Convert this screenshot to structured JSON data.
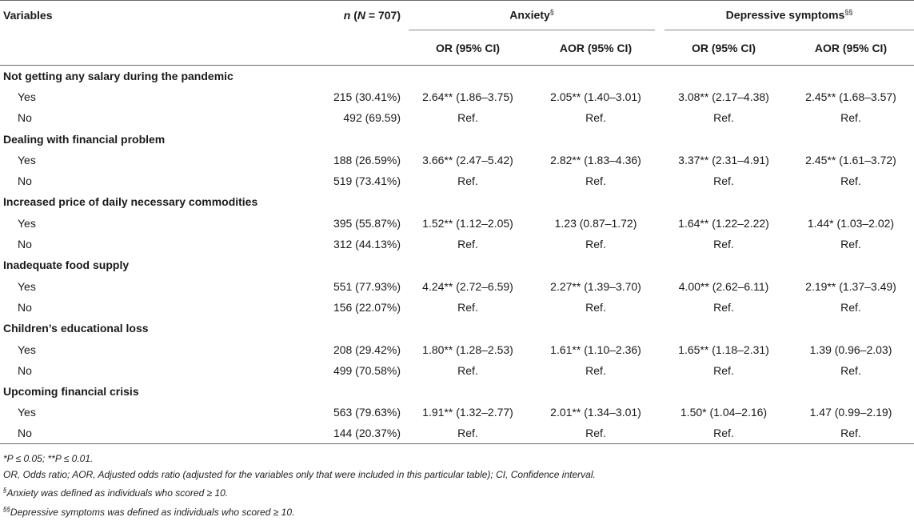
{
  "header": {
    "variables": "Variables",
    "n_prefix": "n",
    "n_rest": " (",
    "n_it2": "N",
    "n_end": " = 707)",
    "anxiety": "Anxiety",
    "anxiety_mark": "§",
    "depressive": "Depressive symptoms",
    "depressive_mark": "§§",
    "or": "OR (95% CI)",
    "aor": "AOR (95% CI)"
  },
  "sections": [
    {
      "title": "Not getting any salary during the pandemic",
      "rows": [
        {
          "label": "Yes",
          "n": "215 (30.41%)",
          "a_or": "2.64** (1.86–3.75)",
          "a_aor": "2.05** (1.40–3.01)",
          "d_or": "3.08** (2.17–4.38)",
          "d_aor": "2.45** (1.68–3.57)"
        },
        {
          "label": "No",
          "n": "492 (69.59)",
          "a_or": "Ref.",
          "a_aor": "Ref.",
          "d_or": "Ref.",
          "d_aor": "Ref."
        }
      ]
    },
    {
      "title": "Dealing with financial problem",
      "rows": [
        {
          "label": "Yes",
          "n": "188 (26.59%)",
          "a_or": "3.66** (2.47–5.42)",
          "a_aor": "2.82** (1.83–4.36)",
          "d_or": "3.37** (2.31–4.91)",
          "d_aor": "2.45** (1.61–3.72)"
        },
        {
          "label": "No",
          "n": "519 (73.41%)",
          "a_or": "Ref.",
          "a_aor": "Ref.",
          "d_or": "Ref.",
          "d_aor": "Ref."
        }
      ]
    },
    {
      "title": "Increased price of daily necessary commodities",
      "rows": [
        {
          "label": "Yes",
          "n": "395 (55.87%)",
          "a_or": "1.52** (1.12–2.05)",
          "a_aor": "1.23 (0.87–1.72)",
          "d_or": "1.64** (1.22–2.22)",
          "d_aor": "1.44* (1.03–2.02)"
        },
        {
          "label": "No",
          "n": "312 (44.13%)",
          "a_or": "Ref.",
          "a_aor": "Ref.",
          "d_or": "Ref.",
          "d_aor": "Ref."
        }
      ]
    },
    {
      "title": "Inadequate food supply",
      "rows": [
        {
          "label": "Yes",
          "n": "551 (77.93%)",
          "a_or": "4.24** (2.72–6.59)",
          "a_aor": "2.27** (1.39–3.70)",
          "d_or": "4.00** (2.62–6.11)",
          "d_aor": "2.19** (1.37–3.49)"
        },
        {
          "label": "No",
          "n": "156 (22.07%)",
          "a_or": "Ref.",
          "a_aor": "Ref.",
          "d_or": "Ref.",
          "d_aor": "Ref."
        }
      ]
    },
    {
      "title": "Children’s educational loss",
      "rows": [
        {
          "label": "Yes",
          "n": "208 (29.42%)",
          "a_or": "1.80** (1.28–2.53)",
          "a_aor": "1.61** (1.10–2.36)",
          "d_or": "1.65** (1.18–2.31)",
          "d_aor": "1.39 (0.96–2.03)"
        },
        {
          "label": "No",
          "n": "499 (70.58%)",
          "a_or": "Ref.",
          "a_aor": "Ref.",
          "d_or": "Ref.",
          "d_aor": "Ref."
        }
      ]
    },
    {
      "title": "Upcoming financial crisis",
      "rows": [
        {
          "label": "Yes",
          "n": "563 (79.63%)",
          "a_or": "1.91** (1.32–2.77)",
          "a_aor": "2.01** (1.34–3.01)",
          "d_or": "1.50* (1.04–2.16)",
          "d_aor": "1.47 (0.99–2.19)"
        },
        {
          "label": "No",
          "n": "144 (20.37%)",
          "a_or": "Ref.",
          "a_aor": "Ref.",
          "d_or": "Ref.",
          "d_aor": "Ref."
        }
      ]
    }
  ],
  "notes": {
    "p_values": "*P ≤ 0.05; **P ≤ 0.01.",
    "abbrev": "OR, Odds ratio; AOR, Adjusted odds ratio (adjusted for the variables only that were included in this particular table); CI, Confidence interval.",
    "anxiety_mark": "§",
    "anxiety_def": "Anxiety was defined as individuals who scored ≥ 10.",
    "depressive_mark": "§§",
    "depressive_def": "Depressive symptoms was defined as individuals who scored ≥ 10."
  }
}
